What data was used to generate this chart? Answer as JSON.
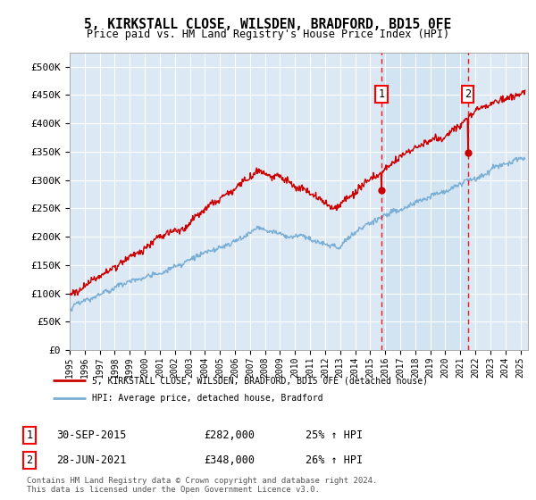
{
  "title1": "5, KIRKSTALL CLOSE, WILSDEN, BRADFORD, BD15 0FE",
  "title2": "Price paid vs. HM Land Registry's House Price Index (HPI)",
  "ylabel_ticks": [
    "£0",
    "£50K",
    "£100K",
    "£150K",
    "£200K",
    "£250K",
    "£300K",
    "£350K",
    "£400K",
    "£450K",
    "£500K"
  ],
  "ytick_values": [
    0,
    50000,
    100000,
    150000,
    200000,
    250000,
    300000,
    350000,
    400000,
    450000,
    500000
  ],
  "ylim": [
    0,
    525000
  ],
  "xlim_start": 1995.0,
  "xlim_end": 2025.5,
  "legend_label_red": "5, KIRKSTALL CLOSE, WILSDEN, BRADFORD, BD15 0FE (detached house)",
  "legend_label_blue": "HPI: Average price, detached house, Bradford",
  "red_color": "#cc0000",
  "blue_color": "#7aaed4",
  "bg_color": "#dce9f5",
  "bg_highlight": "#cce0f0",
  "annotation1": {
    "label": "1",
    "date": "30-SEP-2015",
    "price": "£282,000",
    "pct": "25% ↑ HPI"
  },
  "annotation2": {
    "label": "2",
    "date": "28-JUN-2021",
    "price": "£348,000",
    "pct": "26% ↑ HPI"
  },
  "footnote": "Contains HM Land Registry data © Crown copyright and database right 2024.\nThis data is licensed under the Open Government Licence v3.0.",
  "point1_x": 2015.75,
  "point1_y": 282000,
  "point2_x": 2021.5,
  "point2_y": 348000
}
